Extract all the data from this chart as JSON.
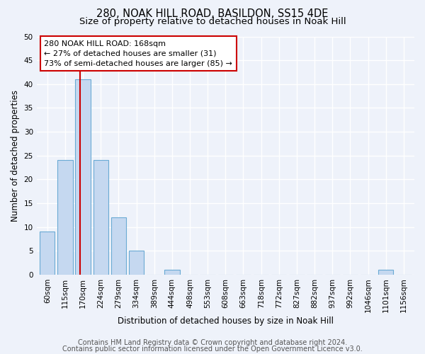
{
  "title1": "280, NOAK HILL ROAD, BASILDON, SS15 4DE",
  "title2": "Size of property relative to detached houses in Noak Hill",
  "xlabel": "Distribution of detached houses by size in Noak Hill",
  "ylabel": "Number of detached properties",
  "bar_categories": [
    "60sqm",
    "115sqm",
    "170sqm",
    "224sqm",
    "279sqm",
    "334sqm",
    "389sqm",
    "444sqm",
    "498sqm",
    "553sqm",
    "608sqm",
    "663sqm",
    "718sqm",
    "772sqm",
    "827sqm",
    "882sqm",
    "937sqm",
    "992sqm",
    "1046sqm",
    "1101sqm",
    "1156sqm"
  ],
  "bar_values": [
    9,
    24,
    41,
    24,
    12,
    5,
    0,
    1,
    0,
    0,
    0,
    0,
    0,
    0,
    0,
    0,
    0,
    0,
    0,
    1,
    0
  ],
  "bar_color": "#c5d8f0",
  "bar_edge_color": "#6aaad4",
  "property_line_x": 1.82,
  "annotation_line1": "280 NOAK HILL ROAD: 168sqm",
  "annotation_line2": "← 27% of detached houses are smaller (31)",
  "annotation_line3": "73% of semi-detached houses are larger (85) →",
  "annotation_box_color": "#ffffff",
  "annotation_box_edge_color": "#cc0000",
  "ylim": [
    0,
    50
  ],
  "yticks": [
    0,
    5,
    10,
    15,
    20,
    25,
    30,
    35,
    40,
    45,
    50
  ],
  "footer1": "Contains HM Land Registry data © Crown copyright and database right 2024.",
  "footer2": "Contains public sector information licensed under the Open Government Licence v3.0.",
  "bg_color": "#eef2fa",
  "grid_color": "#ffffff",
  "title1_fontsize": 10.5,
  "title2_fontsize": 9.5,
  "axis_label_fontsize": 8.5,
  "tick_fontsize": 7.5,
  "annotation_fontsize": 8,
  "footer_fontsize": 7,
  "red_line_color": "#cc0000"
}
